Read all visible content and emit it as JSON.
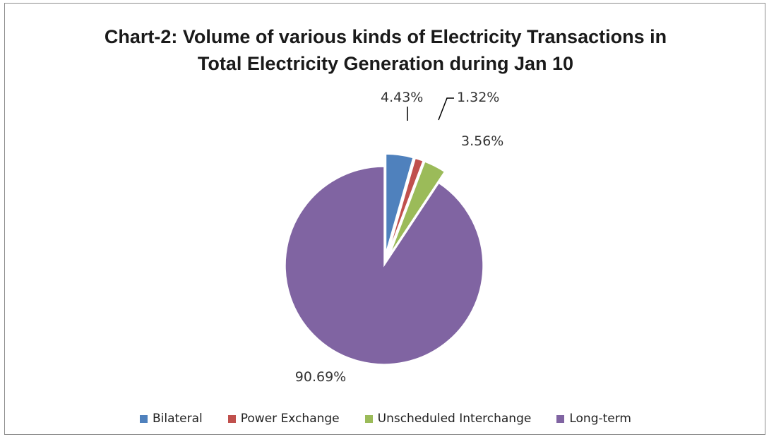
{
  "chart_data": {
    "type": "pie",
    "title_line1": "Chart-2: Volume of various kinds of Electricity Transactions in",
    "title_line2": "Total Electricity Generation during Jan 10",
    "slices": [
      {
        "name": "Bilateral",
        "value": 4.43,
        "label": "4.43%",
        "color": "#4f81bd"
      },
      {
        "name": "Power Exchange",
        "value": 1.32,
        "label": "1.32%",
        "color": "#c0504d"
      },
      {
        "name": "Unscheduled Interchange",
        "value": 3.56,
        "label": "3.56%",
        "color": "#9bbb59"
      },
      {
        "name": "Long-term",
        "value": 90.69,
        "label": "90.69%",
        "color": "#8064a2"
      }
    ],
    "legend_position": "bottom",
    "exploded": true
  }
}
